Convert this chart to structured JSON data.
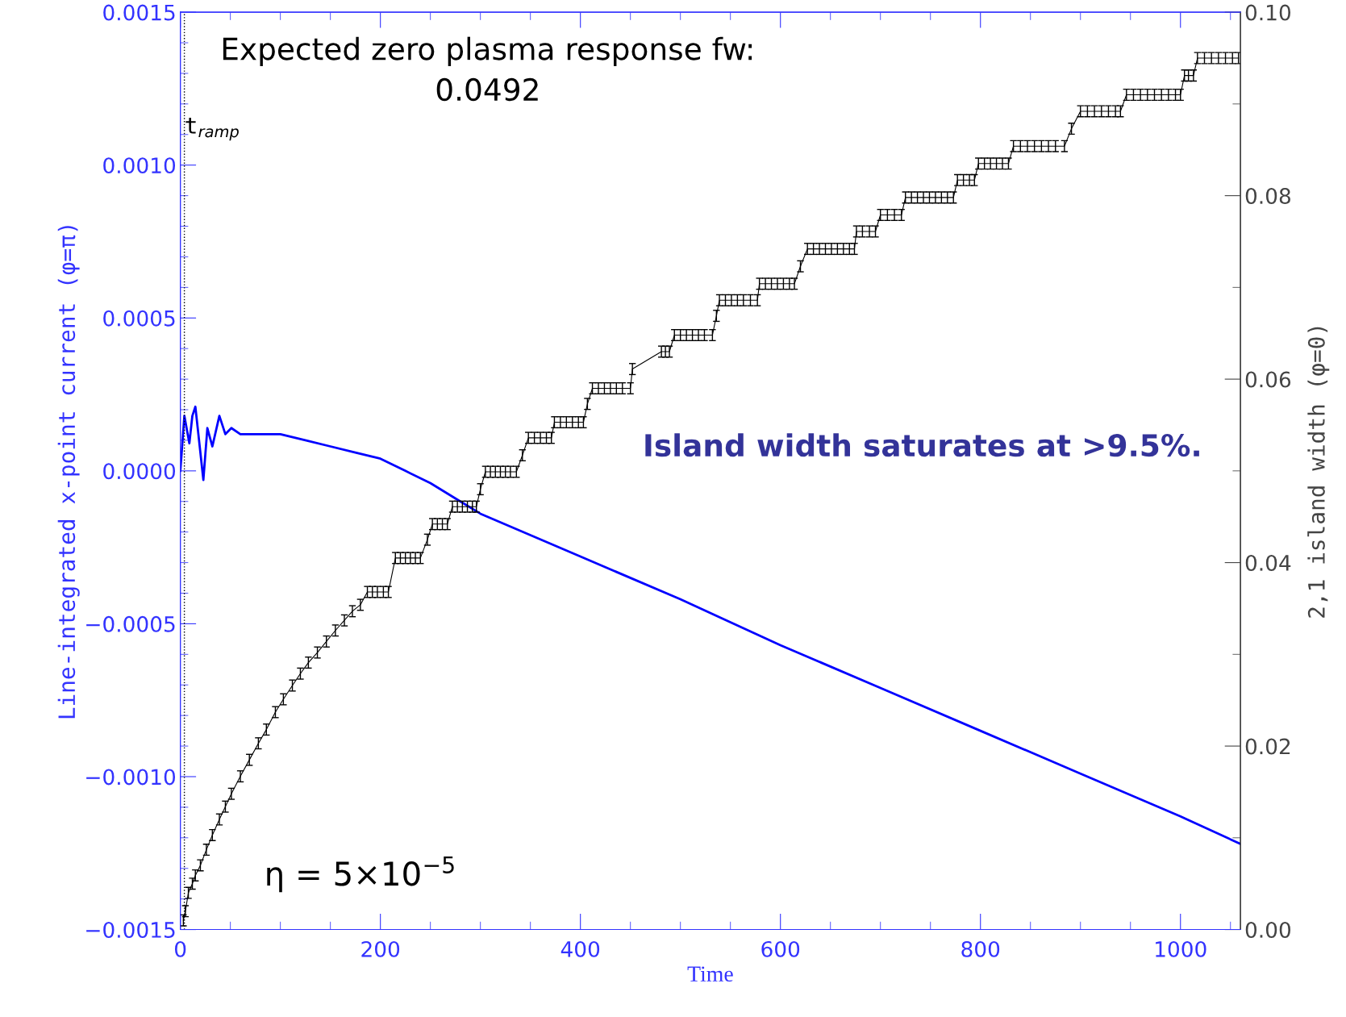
{
  "chart_data": {
    "type": "line",
    "xlabel": "Time",
    "ylabel": "Line-integrated x-point current (φ=π)",
    "y2label": "2,1 island width (φ=0)",
    "xlim": [
      0,
      1060
    ],
    "xticks": [
      0,
      200,
      400,
      600,
      800,
      1000
    ],
    "ylim": [
      -0.0015,
      0.0015
    ],
    "yticks": [
      {
        "value": -0.0015,
        "label": "−0.0015"
      },
      {
        "value": -0.001,
        "label": "−0.0010"
      },
      {
        "value": -0.0005,
        "label": "−0.0005"
      },
      {
        "value": 0,
        "label": "0.0000"
      },
      {
        "value": 0.0005,
        "label": "0.0005"
      },
      {
        "value": 0.001,
        "label": "0.0010"
      },
      {
        "value": 0.0015,
        "label": "0.0015"
      }
    ],
    "y2lim": [
      0,
      0.1
    ],
    "y2ticks": [
      {
        "value": 0,
        "label": "0.00"
      },
      {
        "value": 0.02,
        "label": "0.02"
      },
      {
        "value": 0.04,
        "label": "0.04"
      },
      {
        "value": 0.06,
        "label": "0.06"
      },
      {
        "value": 0.08,
        "label": "0.08"
      },
      {
        "value": 0.1,
        "label": "0.10"
      }
    ],
    "grid": false,
    "legend": false,
    "series": [
      {
        "color": "#0000ff",
        "x": [
          0,
          4,
          9,
          12,
          15,
          19,
          23,
          27,
          32,
          39,
          45,
          51,
          60,
          75,
          100,
          125,
          150,
          175,
          200,
          225,
          250,
          275,
          300,
          400,
          500,
          600,
          700,
          800,
          900,
          1000,
          1060
        ],
        "values": [
          0,
          0.00018,
          9e-05,
          0.00018,
          0.00021,
          9e-05,
          -3e-05,
          0.00014,
          8e-05,
          0.00018,
          0.00012,
          0.00014,
          0.00012,
          0.00012,
          0.00012,
          0.0001,
          8e-05,
          6e-05,
          4e-05,
          0.0,
          -4e-05,
          -9e-05,
          -0.00014,
          -0.00028,
          -0.00042,
          -0.00057,
          -0.00071,
          -0.00085,
          -0.00099,
          -0.00113,
          -0.00122
        ]
      },
      {
        "axis": "y2",
        "color": "#000000",
        "x": [
          3,
          5,
          8,
          12,
          15,
          20,
          26,
          32,
          39,
          45,
          51,
          60,
          69,
          78,
          86,
          95,
          103,
          112,
          120,
          128,
          137,
          146,
          155,
          164,
          172,
          180,
          187,
          192,
          197,
          203,
          208,
          215,
          220,
          225,
          230,
          235,
          240,
          247,
          252,
          257,
          262,
          267,
          272,
          277,
          282,
          287,
          292,
          296,
          300,
          305,
          310,
          315,
          320,
          325,
          330,
          336,
          342,
          348,
          354,
          360,
          366,
          371,
          374,
          380,
          386,
          392,
          398,
          403,
          407,
          412,
          418,
          424,
          430,
          436,
          442,
          450,
          452,
          481,
          485,
          489,
          494,
          500,
          506,
          512,
          518,
          524,
          532,
          536,
          539,
          545,
          551,
          557,
          563,
          570,
          577,
          579,
          585,
          591,
          597,
          603,
          609,
          614,
          620,
          627,
          633,
          639,
          645,
          651,
          657,
          663,
          669,
          674,
          676,
          682,
          689,
          695,
          700,
          707,
          714,
          721,
          725,
          731,
          737,
          743,
          749,
          755,
          761,
          767,
          773,
          777,
          783,
          789,
          794,
          798,
          804,
          810,
          816,
          822,
          828,
          833,
          840,
          847,
          854,
          861,
          868,
          875,
          884,
          891,
          900,
          907,
          914,
          921,
          928,
          935,
          940,
          946,
          953,
          960,
          967,
          974,
          981,
          988,
          995,
          1000,
          1004,
          1008,
          1013,
          1017,
          1024,
          1031,
          1038,
          1045,
          1052,
          1058
        ],
        "values": [
          0.001,
          0.002,
          0.004,
          0.005,
          0.0059,
          0.007,
          0.0087,
          0.0103,
          0.012,
          0.0134,
          0.0148,
          0.0167,
          0.0185,
          0.0203,
          0.0218,
          0.0237,
          0.0251,
          0.0266,
          0.0279,
          0.0291,
          0.0302,
          0.0314,
          0.0326,
          0.0337,
          0.0347,
          0.0354,
          0.0368,
          0.0368,
          0.0368,
          0.0368,
          0.0368,
          0.0405,
          0.0405,
          0.0405,
          0.0405,
          0.0405,
          0.0405,
          0.0425,
          0.0442,
          0.0442,
          0.0442,
          0.0442,
          0.0461,
          0.0461,
          0.0461,
          0.0461,
          0.0461,
          0.0461,
          0.048,
          0.0499,
          0.0499,
          0.0499,
          0.0499,
          0.0499,
          0.0499,
          0.0499,
          0.0517,
          0.0536,
          0.0536,
          0.0536,
          0.0536,
          0.0536,
          0.0553,
          0.0553,
          0.0553,
          0.0553,
          0.0553,
          0.0553,
          0.0573,
          0.059,
          0.059,
          0.059,
          0.059,
          0.059,
          0.059,
          0.059,
          0.0611,
          0.063,
          0.063,
          0.063,
          0.0648,
          0.0648,
          0.0648,
          0.0648,
          0.0648,
          0.0648,
          0.0648,
          0.0669,
          0.0686,
          0.0686,
          0.0686,
          0.0686,
          0.0686,
          0.0686,
          0.0686,
          0.0704,
          0.0704,
          0.0704,
          0.0704,
          0.0704,
          0.0704,
          0.0704,
          0.0723,
          0.0742,
          0.0742,
          0.0742,
          0.0742,
          0.0742,
          0.0742,
          0.0742,
          0.0742,
          0.0742,
          0.0761,
          0.0761,
          0.0761,
          0.0761,
          0.0779,
          0.0779,
          0.0779,
          0.0779,
          0.0798,
          0.0798,
          0.0798,
          0.0798,
          0.0798,
          0.0798,
          0.0798,
          0.0798,
          0.0798,
          0.0817,
          0.0817,
          0.0817,
          0.0817,
          0.0835,
          0.0835,
          0.0835,
          0.0835,
          0.0835,
          0.0835,
          0.0854,
          0.0854,
          0.0854,
          0.0854,
          0.0854,
          0.0854,
          0.0854,
          0.0854,
          0.0873,
          0.0892,
          0.0892,
          0.0892,
          0.0892,
          0.0892,
          0.0892,
          0.0892,
          0.091,
          0.091,
          0.091,
          0.091,
          0.091,
          0.091,
          0.091,
          0.091,
          0.091,
          0.0931,
          0.0931,
          0.0931,
          0.095,
          0.095,
          0.095,
          0.095,
          0.095,
          0.095,
          0.095
        ],
        "errors": [
          0.0006,
          0.0006,
          0.0006,
          0.0006,
          0.0006,
          0.0006,
          0.0006,
          0.0006,
          0.0006,
          0.0006,
          0.0006,
          0.0006,
          0.0006,
          0.0006,
          0.0006,
          0.0006,
          0.0006,
          0.0006,
          0.0006,
          0.0006,
          0.0006,
          0.0006,
          0.0006,
          0.0006,
          0.0006,
          0.0006,
          0.0006,
          0.0006,
          0.0006,
          0.0006,
          0.0006,
          0.0006,
          0.0006,
          0.0006,
          0.0006,
          0.0006,
          0.0006,
          0.0006,
          0.0006,
          0.0006,
          0.0006,
          0.0006,
          0.0006,
          0.0006,
          0.0006,
          0.0006,
          0.0006,
          0.0006,
          0.0006,
          0.0006,
          0.0006,
          0.0006,
          0.0006,
          0.0006,
          0.0006,
          0.0006,
          0.0006,
          0.0006,
          0.0006,
          0.0006,
          0.0006,
          0.0006,
          0.0006,
          0.0006,
          0.0006,
          0.0006,
          0.0006,
          0.0006,
          0.0006,
          0.0006,
          0.0006,
          0.0006,
          0.0006,
          0.0006,
          0.0006,
          0.0006,
          0.0006,
          0.0006,
          0.0006,
          0.0006,
          0.0006,
          0.0006,
          0.0006,
          0.0006,
          0.0006,
          0.0006,
          0.0006,
          0.0006,
          0.0006,
          0.0006,
          0.0006,
          0.0006,
          0.0006,
          0.0006,
          0.0006,
          0.0006,
          0.0006,
          0.0006,
          0.0006,
          0.0006,
          0.0006,
          0.0006,
          0.0006,
          0.0006,
          0.0006,
          0.0006,
          0.0006,
          0.0006,
          0.0006,
          0.0006,
          0.0006,
          0.0006,
          0.0006,
          0.0006,
          0.0006,
          0.0006,
          0.0006,
          0.0006,
          0.0006,
          0.0006,
          0.0006,
          0.0006,
          0.0006,
          0.0006,
          0.0006,
          0.0006,
          0.0006,
          0.0006,
          0.0006,
          0.0006,
          0.0006,
          0.0006,
          0.0006,
          0.0006,
          0.0006,
          0.0006,
          0.0006,
          0.0006,
          0.0006,
          0.0006,
          0.0006,
          0.0006,
          0.0006,
          0.0006,
          0.0006,
          0.0006,
          0.0006,
          0.0006,
          0.0006,
          0.0006,
          0.0006,
          0.0006,
          0.0006,
          0.0006,
          0.0006,
          0.0006,
          0.0006,
          0.0006,
          0.0006,
          0.0006,
          0.0006,
          0.0006,
          0.0006,
          0.0006,
          0.0006,
          0.0006,
          0.0006,
          0.0006,
          0.0006,
          0.0006,
          0.0006,
          0.0006,
          0.0006,
          0.0006
        ]
      }
    ],
    "ref_lines": [
      {
        "axis": "x",
        "value": 4,
        "label": "t$_{ramp}$",
        "color": "#000000",
        "line_style": "dotted"
      }
    ],
    "annotations": [
      "Expected zero plasma response fw:\n0.0492",
      "Island width saturates at >9.5%.",
      "η = 5×10$^{−5}$"
    ]
  }
}
